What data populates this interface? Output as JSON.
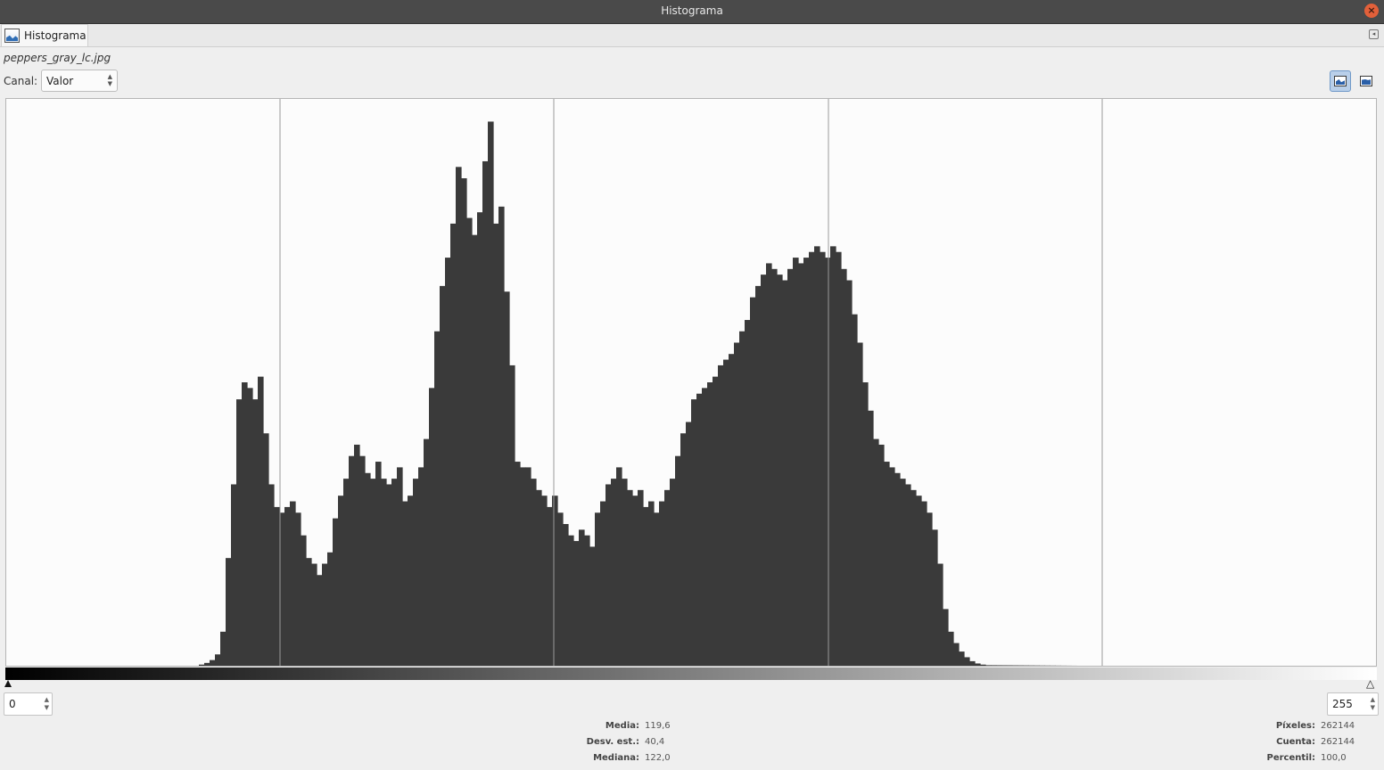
{
  "window": {
    "title": "Histograma"
  },
  "tab": {
    "label": "Histograma"
  },
  "file": {
    "name": "peppers_gray_lc.jpg"
  },
  "channel": {
    "label": "Canal:",
    "value": "Valor"
  },
  "range": {
    "low": "0",
    "high": "255"
  },
  "stats_left": [
    {
      "label": "Media:",
      "value": "119,6"
    },
    {
      "label": "Desv. est.:",
      "value": "40,4"
    },
    {
      "label": "Mediana:",
      "value": "122,0"
    }
  ],
  "stats_right": [
    {
      "label": "Píxeles:",
      "value": "262144"
    },
    {
      "label": "Cuenta:",
      "value": "262144"
    },
    {
      "label": "Percentil:",
      "value": "100,0"
    }
  ],
  "icons": {
    "tab": "histogram-icon",
    "close": "close-icon",
    "linear": "linear-histogram-icon",
    "log": "logarithmic-histogram-icon",
    "dock_menu": "tab-menu-icon"
  },
  "colors": {
    "bars": "#3a3a3a",
    "selected_mode": "#b9cfe9",
    "close": "#e2603a"
  },
  "chart_data": {
    "type": "bar",
    "scale": "linear",
    "xlim": [
      0,
      255
    ],
    "ylim": [
      0,
      1
    ],
    "grid": true,
    "bins": [
      [
        0,
        0
      ],
      [
        35,
        0
      ],
      [
        36,
        0.002
      ],
      [
        37,
        0.005
      ],
      [
        38,
        0.01
      ],
      [
        39,
        0.02
      ],
      [
        40,
        0.06
      ],
      [
        41,
        0.19
      ],
      [
        42,
        0.32
      ],
      [
        43,
        0.47
      ],
      [
        44,
        0.5
      ],
      [
        45,
        0.49
      ],
      [
        46,
        0.47
      ],
      [
        47,
        0.51
      ],
      [
        48,
        0.41
      ],
      [
        49,
        0.32
      ],
      [
        50,
        0.28
      ],
      [
        51,
        0.27
      ],
      [
        52,
        0.28
      ],
      [
        53,
        0.29
      ],
      [
        54,
        0.27
      ],
      [
        55,
        0.23
      ],
      [
        56,
        0.19
      ],
      [
        57,
        0.18
      ],
      [
        58,
        0.16
      ],
      [
        59,
        0.18
      ],
      [
        60,
        0.2
      ],
      [
        61,
        0.26
      ],
      [
        62,
        0.3
      ],
      [
        63,
        0.33
      ],
      [
        64,
        0.37
      ],
      [
        65,
        0.39
      ],
      [
        66,
        0.37
      ],
      [
        67,
        0.34
      ],
      [
        68,
        0.33
      ],
      [
        69,
        0.36
      ],
      [
        70,
        0.33
      ],
      [
        71,
        0.32
      ],
      [
        72,
        0.33
      ],
      [
        73,
        0.35
      ],
      [
        74,
        0.29
      ],
      [
        75,
        0.3
      ],
      [
        76,
        0.33
      ],
      [
        77,
        0.35
      ],
      [
        78,
        0.4
      ],
      [
        79,
        0.49
      ],
      [
        80,
        0.59
      ],
      [
        81,
        0.67
      ],
      [
        82,
        0.72
      ],
      [
        83,
        0.78
      ],
      [
        84,
        0.88
      ],
      [
        85,
        0.86
      ],
      [
        86,
        0.79
      ],
      [
        87,
        0.76
      ],
      [
        88,
        0.8
      ],
      [
        89,
        0.89
      ],
      [
        90,
        0.96
      ],
      [
        91,
        0.78
      ],
      [
        92,
        0.81
      ],
      [
        93,
        0.66
      ],
      [
        94,
        0.53
      ],
      [
        95,
        0.36
      ],
      [
        96,
        0.35
      ],
      [
        97,
        0.35
      ],
      [
        98,
        0.33
      ],
      [
        99,
        0.31
      ],
      [
        100,
        0.3
      ],
      [
        101,
        0.28
      ],
      [
        102,
        0.3
      ],
      [
        103,
        0.27
      ],
      [
        104,
        0.25
      ],
      [
        105,
        0.23
      ],
      [
        106,
        0.22
      ],
      [
        107,
        0.24
      ],
      [
        108,
        0.23
      ],
      [
        109,
        0.21
      ],
      [
        110,
        0.27
      ],
      [
        111,
        0.29
      ],
      [
        112,
        0.32
      ],
      [
        113,
        0.33
      ],
      [
        114,
        0.35
      ],
      [
        115,
        0.33
      ],
      [
        116,
        0.31
      ],
      [
        117,
        0.3
      ],
      [
        118,
        0.31
      ],
      [
        119,
        0.28
      ],
      [
        120,
        0.29
      ],
      [
        121,
        0.27
      ],
      [
        122,
        0.29
      ],
      [
        123,
        0.31
      ],
      [
        124,
        0.33
      ],
      [
        125,
        0.37
      ],
      [
        126,
        0.41
      ],
      [
        127,
        0.43
      ],
      [
        128,
        0.47
      ],
      [
        129,
        0.48
      ],
      [
        130,
        0.49
      ],
      [
        131,
        0.5
      ],
      [
        132,
        0.51
      ],
      [
        133,
        0.53
      ],
      [
        134,
        0.54
      ],
      [
        135,
        0.55
      ],
      [
        136,
        0.57
      ],
      [
        137,
        0.59
      ],
      [
        138,
        0.61
      ],
      [
        139,
        0.65
      ],
      [
        140,
        0.67
      ],
      [
        141,
        0.69
      ],
      [
        142,
        0.71
      ],
      [
        143,
        0.7
      ],
      [
        144,
        0.69
      ],
      [
        145,
        0.68
      ],
      [
        146,
        0.7
      ],
      [
        147,
        0.72
      ],
      [
        148,
        0.71
      ],
      [
        149,
        0.72
      ],
      [
        150,
        0.73
      ],
      [
        151,
        0.74
      ],
      [
        152,
        0.73
      ],
      [
        153,
        0.72
      ],
      [
        154,
        0.74
      ],
      [
        155,
        0.73
      ],
      [
        156,
        0.7
      ],
      [
        157,
        0.68
      ],
      [
        158,
        0.62
      ],
      [
        159,
        0.57
      ],
      [
        160,
        0.5
      ],
      [
        161,
        0.45
      ],
      [
        162,
        0.4
      ],
      [
        163,
        0.39
      ],
      [
        164,
        0.36
      ],
      [
        165,
        0.35
      ],
      [
        166,
        0.34
      ],
      [
        167,
        0.33
      ],
      [
        168,
        0.32
      ],
      [
        169,
        0.31
      ],
      [
        170,
        0.3
      ],
      [
        171,
        0.29
      ],
      [
        172,
        0.27
      ],
      [
        173,
        0.24
      ],
      [
        174,
        0.18
      ],
      [
        175,
        0.1
      ],
      [
        176,
        0.06
      ],
      [
        177,
        0.04
      ],
      [
        178,
        0.025
      ],
      [
        179,
        0.015
      ],
      [
        180,
        0.008
      ],
      [
        181,
        0.004
      ],
      [
        182,
        0.002
      ],
      [
        183,
        0.001
      ],
      [
        200,
        0
      ],
      [
        255,
        0
      ]
    ]
  }
}
